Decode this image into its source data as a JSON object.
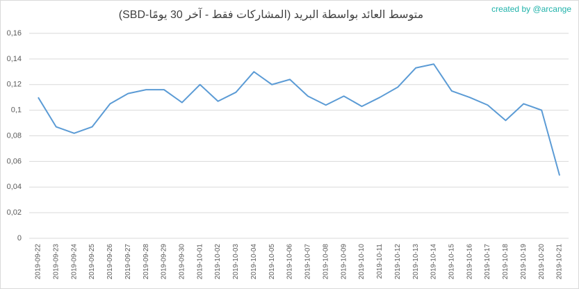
{
  "chart_data": {
    "type": "line",
    "title": "متوسط العائد بواسطة البريد (المشاركات فقط - آخر 30 يومًا-SBD)",
    "annotation": "created by @arcange",
    "categories": [
      "2019-09-22",
      "2019-09-23",
      "2019-09-24",
      "2019-09-25",
      "2019-09-26",
      "2019-09-27",
      "2019-09-28",
      "2019-09-29",
      "2019-09-30",
      "2019-10-01",
      "2019-10-02",
      "2019-10-03",
      "2019-10-04",
      "2019-10-05",
      "2019-10-06",
      "2019-10-07",
      "2019-10-08",
      "2019-10-09",
      "2019-10-10",
      "2019-10-11",
      "2019-10-12",
      "2019-10-13",
      "2019-10-14",
      "2019-10-15",
      "2019-10-16",
      "2019-10-17",
      "2019-10-18",
      "2019-10-19",
      "2019-10-20",
      "2019-10-21"
    ],
    "values": [
      0.11,
      0.087,
      0.082,
      0.087,
      0.105,
      0.113,
      0.116,
      0.116,
      0.106,
      0.12,
      0.107,
      0.114,
      0.13,
      0.12,
      0.124,
      0.111,
      0.104,
      0.111,
      0.103,
      0.11,
      0.118,
      0.133,
      0.136,
      0.115,
      0.11,
      0.104,
      0.092,
      0.105,
      0.1,
      0.049
    ],
    "color": "#5b9bd5",
    "ylim": [
      0,
      0.16
    ],
    "yticks": [
      0,
      {
        "value": 0.02,
        "label": "0,02"
      },
      {
        "value": 0.04,
        "label": "0,04"
      },
      {
        "value": 0.06,
        "label": "0,06"
      },
      {
        "value": 0.08,
        "label": "0,08"
      },
      {
        "value": 0.1,
        "label": "0,1"
      },
      {
        "value": 0.12,
        "label": "0,12"
      },
      {
        "value": 0.14,
        "label": "0,14"
      },
      {
        "value": 0.16,
        "label": "0,16"
      }
    ],
    "grid": true
  }
}
